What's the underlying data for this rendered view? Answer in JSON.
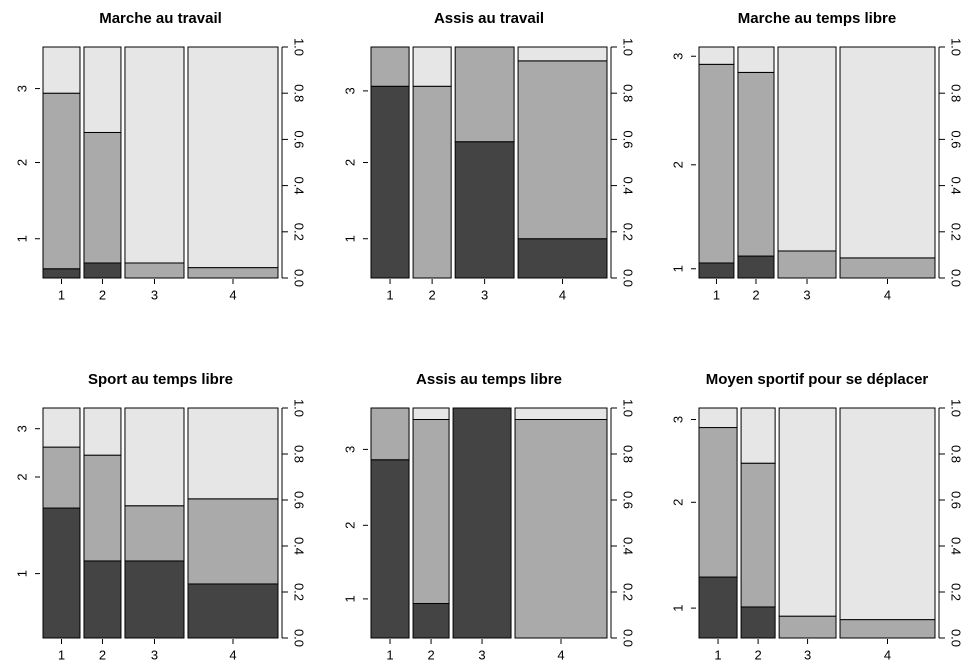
{
  "chart_data": [
    {
      "type": "spineplot",
      "title": "Marche au travail",
      "categories": [
        "1",
        "2",
        "3",
        "4"
      ],
      "widths": [
        0.166,
        0.166,
        0.265,
        0.404
      ],
      "series": [
        {
          "color": "#444444",
          "values": [
            0.04,
            0.065,
            0,
            0
          ]
        },
        {
          "color": "#aaaaaa",
          "values": [
            0.76,
            0.565,
            0.065,
            0.045
          ]
        },
        {
          "color": "#e6e6e6",
          "values": [
            0.2,
            0.37,
            0.935,
            0.955
          ]
        }
      ],
      "ylim": [
        0,
        1
      ],
      "yticks": [
        {
          "value": 0,
          "label": "0.0"
        },
        0.2,
        0.4,
        0.6,
        0.8,
        {
          "value": 1,
          "label": "1.0"
        }
      ],
      "level_ticks": [
        {
          "value": 0.17,
          "label": "1"
        },
        {
          "value": 0.5,
          "label": "2"
        },
        {
          "value": 0.82,
          "label": "3"
        }
      ]
    },
    {
      "type": "spineplot",
      "title": "Assis au travail",
      "categories": [
        "1",
        "2",
        "3",
        "4"
      ],
      "widths": [
        0.17,
        0.17,
        0.263,
        0.397
      ],
      "series": [
        {
          "color": "#444444",
          "values": [
            0.83,
            0,
            0.59,
            0.17
          ]
        },
        {
          "color": "#aaaaaa",
          "values": [
            0.17,
            0.83,
            0.41,
            0.77
          ]
        },
        {
          "color": "#e6e6e6",
          "values": [
            0,
            0.17,
            0,
            0.06
          ]
        }
      ],
      "ylim": [
        0,
        1
      ],
      "yticks": [
        {
          "value": 0,
          "label": "0.0"
        },
        0.2,
        0.4,
        0.6,
        0.8,
        {
          "value": 1,
          "label": "1.0"
        }
      ],
      "level_ticks": [
        {
          "value": 0.17,
          "label": "1"
        },
        {
          "value": 0.5,
          "label": "2"
        },
        {
          "value": 0.81,
          "label": "3"
        }
      ]
    },
    {
      "type": "spineplot",
      "title": "Marche au temps libre",
      "categories": [
        "1",
        "2",
        "3",
        "4"
      ],
      "widths": [
        0.156,
        0.161,
        0.259,
        0.424
      ],
      "series": [
        {
          "color": "#444444",
          "values": [
            0.065,
            0.095,
            0,
            0
          ]
        },
        {
          "color": "#aaaaaa",
          "values": [
            0.86,
            0.795,
            0.117,
            0.087
          ]
        },
        {
          "color": "#e6e6e6",
          "values": [
            0.075,
            0.11,
            0.883,
            0.913
          ]
        }
      ],
      "ylim": [
        0,
        1
      ],
      "yticks": [
        {
          "value": 0,
          "label": "0.0"
        },
        0.2,
        0.4,
        0.6,
        0.8,
        {
          "value": 1,
          "label": "1.0"
        }
      ],
      "level_ticks": [
        {
          "value": 0.04,
          "label": "1"
        },
        {
          "value": 0.49,
          "label": "2"
        },
        {
          "value": 0.96,
          "label": "3"
        }
      ]
    },
    {
      "type": "spineplot",
      "title": "Sport au temps libre",
      "categories": [
        "1",
        "2",
        "3",
        "4"
      ],
      "widths": [
        0.166,
        0.166,
        0.265,
        0.404
      ],
      "series": [
        {
          "color": "#444444",
          "values": [
            0.565,
            0.335,
            0.335,
            0.235
          ]
        },
        {
          "color": "#aaaaaa",
          "values": [
            0.265,
            0.46,
            0.24,
            0.37
          ]
        },
        {
          "color": "#e6e6e6",
          "values": [
            0.17,
            0.205,
            0.425,
            0.395
          ]
        }
      ],
      "ylim": [
        0,
        1
      ],
      "yticks": [
        {
          "value": 0,
          "label": "0.0"
        },
        0.2,
        0.4,
        0.6,
        0.8,
        {
          "value": 1,
          "label": "1.0"
        }
      ],
      "level_ticks": [
        {
          "value": 0.28,
          "label": "1"
        },
        {
          "value": 0.7,
          "label": "2"
        },
        {
          "value": 0.91,
          "label": "3"
        }
      ]
    },
    {
      "type": "spineplot",
      "title": "Assis au temps libre",
      "categories": [
        "1",
        "2",
        "3",
        "4"
      ],
      "widths": [
        0.17,
        0.161,
        0.259,
        0.411
      ],
      "series": [
        {
          "color": "#444444",
          "values": [
            0.775,
            0.15,
            1,
            0
          ]
        },
        {
          "color": "#aaaaaa",
          "values": [
            0.225,
            0.8,
            0,
            0.95
          ]
        },
        {
          "color": "#e6e6e6",
          "values": [
            0,
            0.05,
            0,
            0.05
          ]
        }
      ],
      "ylim": [
        0,
        1
      ],
      "yticks": [
        {
          "value": 0,
          "label": "0.0"
        },
        0.2,
        0.4,
        0.6,
        0.8,
        {
          "value": 1,
          "label": "1.0"
        }
      ],
      "level_ticks": [
        {
          "value": 0.17,
          "label": "1"
        },
        {
          "value": 0.49,
          "label": "2"
        },
        {
          "value": 0.82,
          "label": "3"
        }
      ]
    },
    {
      "type": "spineplot",
      "title": "Moyen sportif pour se déplacer",
      "categories": [
        "1",
        "2",
        "3",
        "4"
      ],
      "widths": [
        0.17,
        0.152,
        0.254,
        0.424
      ],
      "series": [
        {
          "color": "#444444",
          "values": [
            0.265,
            0.135,
            0,
            0
          ]
        },
        {
          "color": "#aaaaaa",
          "values": [
            0.65,
            0.625,
            0.095,
            0.08
          ]
        },
        {
          "color": "#e6e6e6",
          "values": [
            0.085,
            0.24,
            0.905,
            0.92
          ]
        }
      ],
      "ylim": [
        0,
        1
      ],
      "yticks": [
        {
          "value": 0,
          "label": "0.0"
        },
        0.2,
        0.4,
        0.6,
        0.8,
        {
          "value": 1,
          "label": "1.0"
        }
      ],
      "level_ticks": [
        {
          "value": 0.13,
          "label": "1"
        },
        {
          "value": 0.59,
          "label": "2"
        },
        {
          "value": 0.95,
          "label": "3"
        }
      ]
    }
  ]
}
